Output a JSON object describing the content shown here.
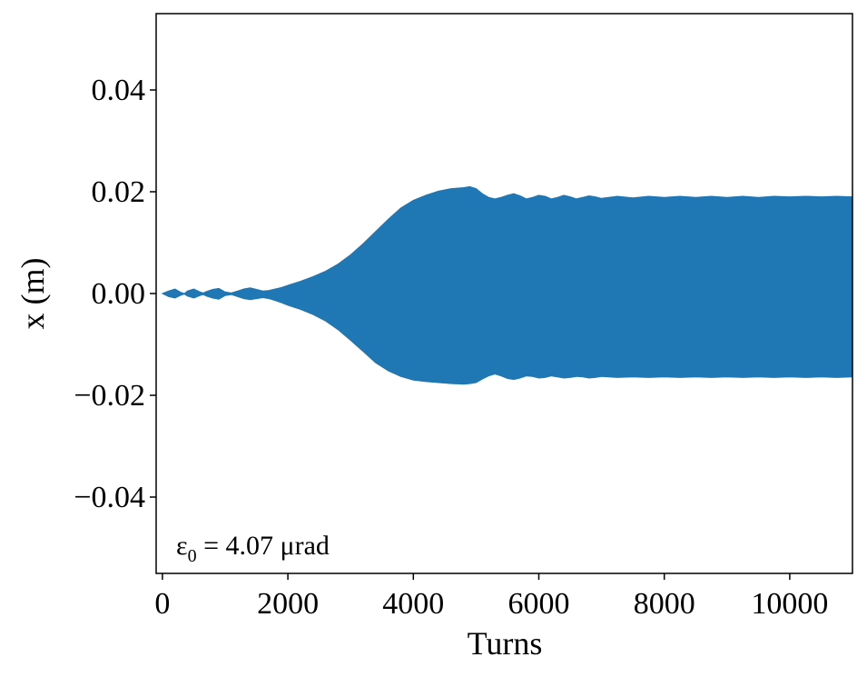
{
  "chart_data": {
    "type": "area",
    "xlabel": "Turns",
    "ylabel": "x (m)",
    "xlim": [
      -100,
      11000
    ],
    "ylim": [
      -0.055,
      0.055
    ],
    "xticks": [
      0,
      2000,
      4000,
      6000,
      8000,
      10000
    ],
    "xtick_labels": [
      "0",
      "2000",
      "4000",
      "6000",
      "8000",
      "10000"
    ],
    "yticks": [
      -0.04,
      -0.02,
      0.0,
      0.02,
      0.04
    ],
    "ytick_labels": [
      "−0.04",
      "−0.02",
      "0.00",
      "0.02",
      "0.04"
    ],
    "grid": false,
    "series_color": "#1f77b4",
    "annotation": {
      "symbol": "ε",
      "subscript": "0",
      "text": " = 4.07 μrad"
    },
    "series": [
      {
        "envelope_upper": {
          "x": [
            0,
            100,
            200,
            300,
            350,
            400,
            500,
            600,
            650,
            700,
            800,
            900,
            1000,
            1100,
            1200,
            1300,
            1400,
            1500,
            1600,
            1700,
            1800,
            1900,
            2000,
            2200,
            2400,
            2600,
            2800,
            3000,
            3200,
            3400,
            3600,
            3800,
            4000,
            4200,
            4400,
            4600,
            4800,
            4900,
            5000,
            5100,
            5200,
            5300,
            5400,
            5500,
            5600,
            5700,
            5800,
            5900,
            6000,
            6100,
            6200,
            6300,
            6400,
            6500,
            6600,
            6700,
            6800,
            6900,
            7000,
            7250,
            7500,
            7750,
            8000,
            8250,
            8500,
            8750,
            9000,
            9250,
            9500,
            9750,
            10000,
            10250,
            10500,
            10750,
            11000
          ],
          "y": [
            0.0,
            0.0005,
            0.0009,
            0.0002,
            0.0,
            0.0005,
            0.0009,
            0.0003,
            0.0001,
            0.0004,
            0.0008,
            0.001,
            0.0003,
            0.0001,
            0.0005,
            0.0009,
            0.0011,
            0.0008,
            0.0005,
            0.0006,
            0.0009,
            0.0012,
            0.0016,
            0.0024,
            0.0033,
            0.0044,
            0.0058,
            0.0076,
            0.0098,
            0.0122,
            0.0146,
            0.0168,
            0.0183,
            0.0193,
            0.0201,
            0.0206,
            0.0208,
            0.021,
            0.0206,
            0.0196,
            0.0189,
            0.0186,
            0.0189,
            0.0193,
            0.0196,
            0.0192,
            0.0186,
            0.0189,
            0.0193,
            0.0191,
            0.0186,
            0.0189,
            0.0193,
            0.019,
            0.0186,
            0.0189,
            0.0192,
            0.019,
            0.0187,
            0.0191,
            0.0188,
            0.0191,
            0.0189,
            0.0191,
            0.0189,
            0.0191,
            0.0189,
            0.0191,
            0.0189,
            0.0191,
            0.019,
            0.0191,
            0.019,
            0.0191,
            0.019
          ]
        },
        "envelope_lower": {
          "x": [
            0,
            100,
            200,
            300,
            350,
            400,
            500,
            600,
            650,
            700,
            800,
            900,
            1000,
            1100,
            1200,
            1300,
            1400,
            1500,
            1600,
            1700,
            1800,
            1900,
            2000,
            2200,
            2400,
            2600,
            2800,
            3000,
            3200,
            3400,
            3600,
            3800,
            4000,
            4200,
            4400,
            4600,
            4800,
            4900,
            5000,
            5100,
            5200,
            5300,
            5400,
            5500,
            5600,
            5700,
            5800,
            5900,
            6000,
            6100,
            6200,
            6300,
            6400,
            6500,
            6600,
            6700,
            6800,
            6900,
            7000,
            7250,
            7500,
            7750,
            8000,
            8250,
            8500,
            8750,
            9000,
            9250,
            9500,
            9750,
            10000,
            10250,
            10500,
            10750,
            11000
          ],
          "y": [
            0.0,
            -0.0006,
            -0.0009,
            -0.0003,
            -0.0001,
            -0.0005,
            -0.0009,
            -0.0004,
            -0.0002,
            -0.0005,
            -0.0009,
            -0.0011,
            -0.0004,
            -0.0002,
            -0.0006,
            -0.001,
            -0.0012,
            -0.001,
            -0.0008,
            -0.001,
            -0.0014,
            -0.0018,
            -0.0023,
            -0.0031,
            -0.0041,
            -0.0054,
            -0.0071,
            -0.0092,
            -0.0114,
            -0.0136,
            -0.0152,
            -0.0163,
            -0.017,
            -0.0173,
            -0.0175,
            -0.0177,
            -0.0178,
            -0.0177,
            -0.0175,
            -0.0168,
            -0.0162,
            -0.0158,
            -0.0162,
            -0.0167,
            -0.0169,
            -0.0166,
            -0.0162,
            -0.0163,
            -0.0166,
            -0.0165,
            -0.0162,
            -0.0164,
            -0.0166,
            -0.0165,
            -0.0163,
            -0.0164,
            -0.0166,
            -0.0165,
            -0.0163,
            -0.0165,
            -0.0164,
            -0.0165,
            -0.0164,
            -0.0165,
            -0.0164,
            -0.0165,
            -0.0164,
            -0.0165,
            -0.0164,
            -0.0165,
            -0.0164,
            -0.0165,
            -0.0164,
            -0.0165,
            -0.0164
          ]
        }
      }
    ]
  }
}
